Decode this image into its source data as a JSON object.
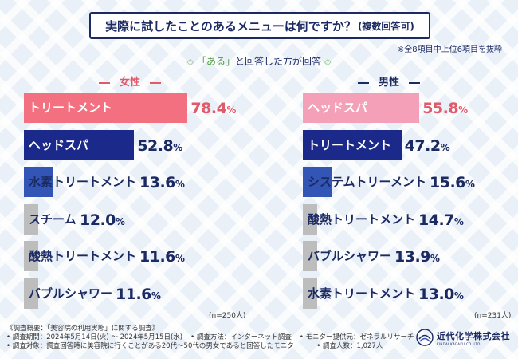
{
  "header": {
    "title": "実際に試したことのあるメニューは何ですか？",
    "title_note": "(複数回答可)",
    "excerpt_note": "※全8項目中上位6項目を抜粋",
    "subtitle_pre": "「ある」",
    "subtitle_post": "と回答した方が回答",
    "diamond": "◇"
  },
  "colors": {
    "female_top": "#f27080",
    "male_top": "#f4a0b8",
    "second": "#1b2a8a",
    "third": "#3355b5",
    "rest": "#bdbdbd",
    "navy": "#1b2a63",
    "pink": "#e05a6a"
  },
  "chart_data": [
    {
      "type": "bar",
      "title": "女性",
      "sample": "(n=250人)",
      "unit": "%",
      "xlim": [
        0,
        100
      ],
      "categories": [
        "トリートメント",
        "ヘッドスパ",
        "水素トリートメント",
        "スチーム",
        "酸熱トリートメント",
        "バブルシャワー"
      ],
      "values": [
        78.4,
        52.8,
        13.6,
        12.0,
        11.6,
        11.6
      ],
      "value_text": [
        [
          "78.",
          "4"
        ],
        [
          "52.",
          "8"
        ],
        [
          "13.",
          "6"
        ],
        [
          "12.",
          "0"
        ],
        [
          "11.",
          "6"
        ],
        [
          "11.",
          "6"
        ]
      ]
    },
    {
      "type": "bar",
      "title": "男性",
      "sample": "(n=231人)",
      "unit": "%",
      "xlim": [
        0,
        100
      ],
      "categories": [
        "ヘッドスパ",
        "トリートメント",
        "システムトリーメント",
        "酸熱トリートメント",
        "バブルシャワー",
        "水素トリートメント"
      ],
      "values": [
        55.8,
        47.2,
        15.6,
        14.7,
        13.9,
        13.0
      ],
      "value_text": [
        [
          "55.",
          "8"
        ],
        [
          "47.",
          "2"
        ],
        [
          "15.",
          "6"
        ],
        [
          "14.",
          "7"
        ],
        [
          "13.",
          "9"
        ],
        [
          "13.",
          "0"
        ]
      ]
    }
  ],
  "footer": {
    "overview": "《調査概要：「美容院の利用実態」に関する調査》",
    "period": "• 調査期間：2024年5月14日(火) 〜 2024年5月15日(水)",
    "method": "• 調査方法：インターネット調査",
    "provider": "• モニター提供元：ゼネラルリサーチ",
    "target": "• 調査対象：調査回答時に美容院に行くことがある20代〜50代の男女であると回答したモニター",
    "count": "• 調査人数：1,027人"
  },
  "brand": {
    "name": "近代化学株式会社",
    "english": "KINDAI KAGAKU CO.,LTD."
  }
}
